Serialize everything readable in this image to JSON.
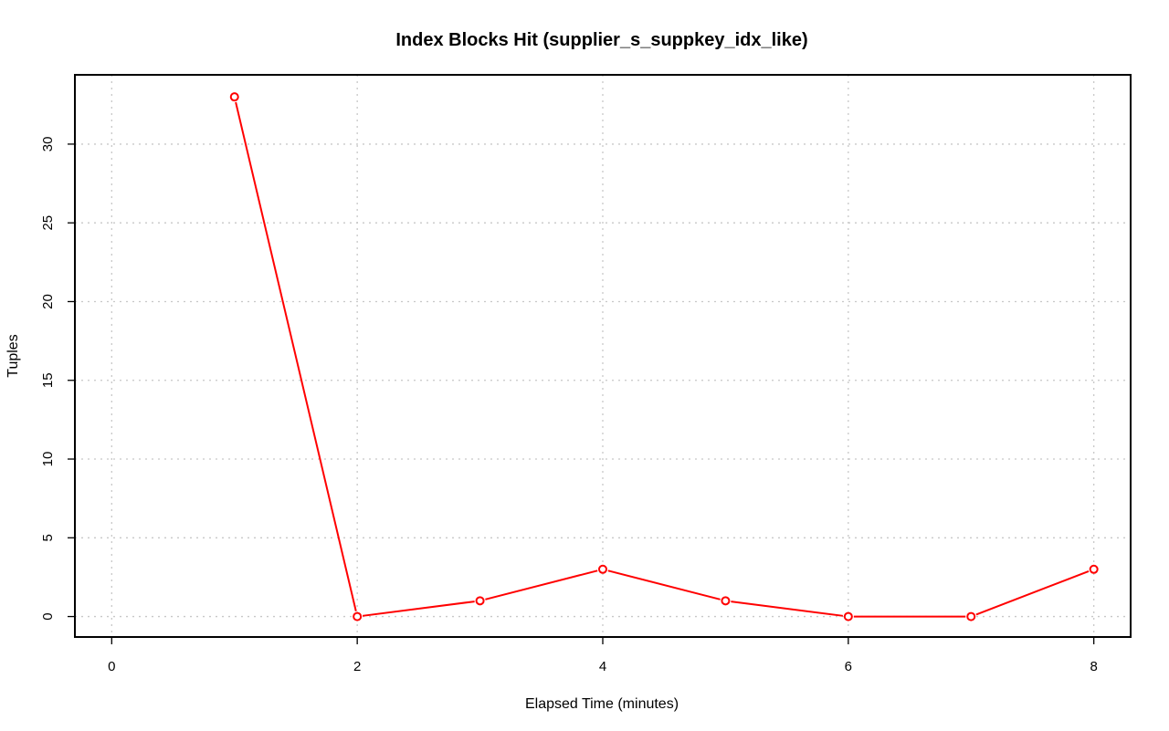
{
  "chart_data": {
    "type": "line",
    "title": "Index Blocks Hit (supplier_s_suppkey_idx_like)",
    "xlabel": "Elapsed Time (minutes)",
    "ylabel": "Tuples",
    "xlim": [
      -0.3,
      8.3
    ],
    "ylim": [
      -1.3,
      34.4
    ],
    "x_ticks": [
      0,
      2,
      4,
      6,
      8
    ],
    "y_ticks": [
      0,
      5,
      10,
      15,
      20,
      25,
      30
    ],
    "grid": true,
    "legend": "none",
    "series": [
      {
        "color": "#ff0000",
        "x": [
          1,
          2,
          3,
          4,
          5,
          6,
          7,
          8
        ],
        "y": [
          33,
          0,
          1,
          3,
          1,
          0,
          0,
          3
        ]
      }
    ]
  }
}
